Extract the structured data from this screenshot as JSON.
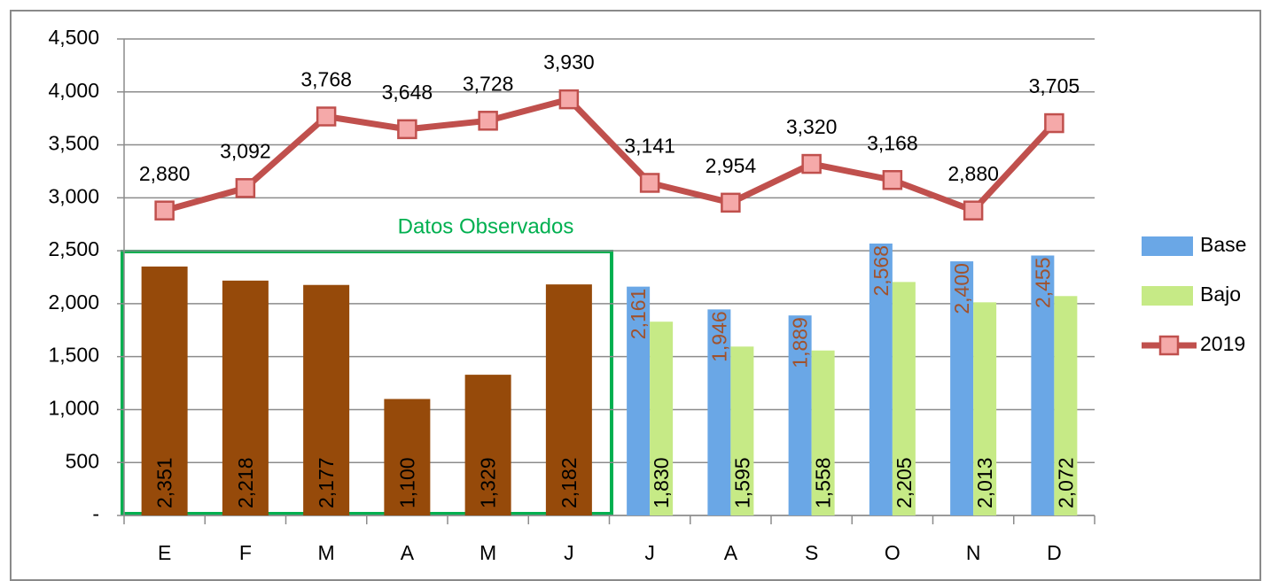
{
  "chart_data": {
    "type": "bar",
    "annotation": "Datos Observados",
    "categories": [
      "E",
      "F",
      "M",
      "A",
      "M",
      "J",
      "J",
      "A",
      "S",
      "O",
      "N",
      "D"
    ],
    "series": [
      {
        "type": "bar",
        "color": "#964a0a",
        "label_color": "#000000",
        "values": [
          2351,
          2218,
          2177,
          1100,
          1329,
          2182,
          null,
          null,
          null,
          null,
          null,
          null
        ],
        "value_labels": [
          "2,351",
          "2,218",
          "2,177",
          "1,100",
          "1,329",
          "2,182",
          null,
          null,
          null,
          null,
          null,
          null
        ]
      },
      {
        "type": "bar",
        "name": "Base",
        "color": "#6aa7e6",
        "label_color": "#a0522d",
        "values": [
          null,
          null,
          null,
          null,
          null,
          null,
          2161,
          1946,
          1889,
          2568,
          2400,
          2455
        ],
        "value_labels": [
          null,
          null,
          null,
          null,
          null,
          null,
          "2,161",
          "1,946",
          "1,889",
          "2,568",
          "2,400",
          "2,455"
        ]
      },
      {
        "type": "bar",
        "name": "Bajo",
        "color": "#c6ea86",
        "label_color": "#000000",
        "values": [
          null,
          null,
          null,
          null,
          null,
          null,
          1830,
          1595,
          1558,
          2205,
          2013,
          2072
        ],
        "value_labels": [
          null,
          null,
          null,
          null,
          null,
          null,
          "1,830",
          "1,595",
          "1,558",
          "2,205",
          "2,013",
          "2,072"
        ]
      },
      {
        "type": "line",
        "name": "2019",
        "color": "#c0504d",
        "marker_color": "#f5a9a9",
        "label_color": "#000000",
        "values": [
          2880,
          3092,
          3768,
          3648,
          3728,
          3930,
          3141,
          2954,
          3320,
          3168,
          2880,
          3705
        ],
        "value_labels": [
          "2,880",
          "3,092",
          "3,768",
          "3,648",
          "3,728",
          "3,930",
          "3,141",
          "2,954",
          "3,320",
          "3,168",
          "2,880",
          "3,705"
        ]
      }
    ],
    "ylim": [
      0,
      4500
    ],
    "yticks": [
      {
        "value": 0,
        "label": "-"
      },
      {
        "value": 500,
        "label": "500"
      },
      {
        "value": 1000,
        "label": "1,000"
      },
      {
        "value": 1500,
        "label": "1,500"
      },
      {
        "value": 2000,
        "label": "2,000"
      },
      {
        "value": 2500,
        "label": "2,500"
      },
      {
        "value": 3000,
        "label": "3,000"
      },
      {
        "value": 3500,
        "label": "3,500"
      },
      {
        "value": 4000,
        "label": "4,000"
      },
      {
        "value": 4500,
        "label": "4,500"
      }
    ],
    "grid": true,
    "legend": "right"
  }
}
